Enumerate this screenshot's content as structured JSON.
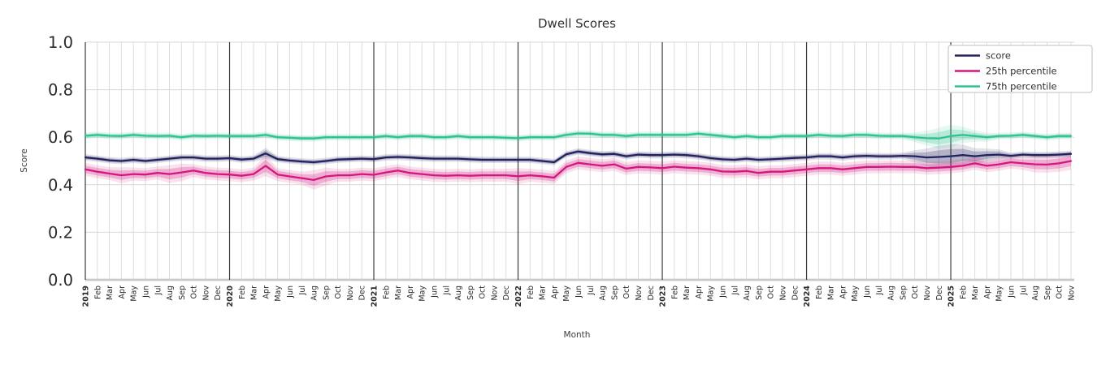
{
  "chart_data": {
    "type": "line",
    "title": "Dwell Scores",
    "xlabel": "Month",
    "ylabel": "Score",
    "ylim": [
      0.0,
      1.0
    ],
    "yticks": [
      "0.0",
      "0.2",
      "0.4",
      "0.6",
      "0.8",
      "1.0"
    ],
    "grid": true,
    "legend_position": "upper right",
    "categories": [
      "2019",
      "Feb",
      "Mar",
      "Apr",
      "May",
      "Jun",
      "Jul",
      "Aug",
      "Sep",
      "Oct",
      "Nov",
      "Dec",
      "2020",
      "Feb",
      "Mar",
      "Apr",
      "May",
      "Jun",
      "Jul",
      "Aug",
      "Sep",
      "Oct",
      "Nov",
      "Dec",
      "2021",
      "Feb",
      "Mar",
      "Apr",
      "May",
      "Jun",
      "Jul",
      "Aug",
      "Sep",
      "Oct",
      "Nov",
      "Dec",
      "2022",
      "Feb",
      "Mar",
      "Apr",
      "May",
      "Jun",
      "Jul",
      "Aug",
      "Sep",
      "Oct",
      "Nov",
      "Dec",
      "2023",
      "Feb",
      "Mar",
      "Apr",
      "May",
      "Jun",
      "Jul",
      "Aug",
      "Sep",
      "Oct",
      "Nov",
      "Dec",
      "2024",
      "Feb",
      "Mar",
      "Apr",
      "May",
      "Jun",
      "Jul",
      "Aug",
      "Sep",
      "Oct",
      "Nov",
      "Dec",
      "2025",
      "Feb",
      "Mar",
      "Apr",
      "May",
      "Jun",
      "Jul",
      "Aug",
      "Sep",
      "Oct",
      "Nov"
    ],
    "series": [
      {
        "name": "score",
        "color": "#23225f",
        "band": 0.008,
        "band_overrides": {
          "15": 0.014,
          "69": 0.015,
          "70": 0.022,
          "71": 0.028,
          "72": 0.03,
          "73": 0.026,
          "74": 0.02,
          "75": 0.016,
          "76": 0.013
        },
        "values": [
          0.515,
          0.51,
          0.503,
          0.5,
          0.505,
          0.5,
          0.505,
          0.51,
          0.515,
          0.515,
          0.51,
          0.51,
          0.512,
          0.506,
          0.51,
          0.532,
          0.508,
          0.502,
          0.498,
          0.495,
          0.5,
          0.506,
          0.508,
          0.51,
          0.508,
          0.515,
          0.517,
          0.515,
          0.512,
          0.51,
          0.51,
          0.51,
          0.507,
          0.505,
          0.505,
          0.505,
          0.505,
          0.505,
          0.5,
          0.495,
          0.528,
          0.54,
          0.533,
          0.528,
          0.53,
          0.52,
          0.527,
          0.525,
          0.525,
          0.527,
          0.525,
          0.52,
          0.512,
          0.507,
          0.505,
          0.51,
          0.505,
          0.507,
          0.51,
          0.513,
          0.515,
          0.52,
          0.52,
          0.515,
          0.52,
          0.522,
          0.52,
          0.52,
          0.522,
          0.52,
          0.515,
          0.517,
          0.52,
          0.525,
          0.52,
          0.525,
          0.527,
          0.522,
          0.527,
          0.525,
          0.525,
          0.527,
          0.53
        ]
      },
      {
        "name": "25th percentile",
        "color": "#d4177f",
        "band": 0.016,
        "band_overrides": {
          "3": 0.02,
          "7": 0.022,
          "8": 0.022,
          "15": 0.026,
          "19": 0.024,
          "20": 0.022,
          "36": 0.02,
          "79": 0.02,
          "80": 0.02,
          "81": 0.021,
          "82": 0.022
        },
        "values": [
          0.465,
          0.455,
          0.447,
          0.44,
          0.445,
          0.443,
          0.45,
          0.445,
          0.452,
          0.46,
          0.45,
          0.445,
          0.443,
          0.438,
          0.445,
          0.48,
          0.443,
          0.435,
          0.428,
          0.42,
          0.435,
          0.44,
          0.44,
          0.445,
          0.442,
          0.452,
          0.46,
          0.45,
          0.445,
          0.44,
          0.438,
          0.44,
          0.438,
          0.44,
          0.44,
          0.44,
          0.436,
          0.44,
          0.436,
          0.43,
          0.475,
          0.492,
          0.486,
          0.48,
          0.486,
          0.468,
          0.475,
          0.473,
          0.47,
          0.476,
          0.472,
          0.47,
          0.465,
          0.456,
          0.455,
          0.458,
          0.45,
          0.455,
          0.455,
          0.46,
          0.465,
          0.47,
          0.47,
          0.465,
          0.47,
          0.475,
          0.475,
          0.476,
          0.475,
          0.475,
          0.47,
          0.472,
          0.475,
          0.48,
          0.49,
          0.48,
          0.486,
          0.495,
          0.49,
          0.486,
          0.485,
          0.49,
          0.5
        ]
      },
      {
        "name": "75th percentile",
        "color": "#2ec48e",
        "band": 0.008,
        "band_overrides": {
          "69": 0.012,
          "70": 0.018,
          "71": 0.026,
          "72": 0.028,
          "73": 0.02,
          "74": 0.014,
          "75": 0.011
        },
        "values": [
          0.606,
          0.61,
          0.606,
          0.605,
          0.61,
          0.606,
          0.605,
          0.606,
          0.6,
          0.606,
          0.605,
          0.606,
          0.605,
          0.605,
          0.605,
          0.61,
          0.6,
          0.598,
          0.595,
          0.595,
          0.6,
          0.6,
          0.6,
          0.6,
          0.6,
          0.605,
          0.6,
          0.605,
          0.605,
          0.6,
          0.6,
          0.605,
          0.6,
          0.6,
          0.6,
          0.598,
          0.596,
          0.6,
          0.6,
          0.6,
          0.61,
          0.616,
          0.615,
          0.61,
          0.61,
          0.605,
          0.61,
          0.61,
          0.61,
          0.61,
          0.61,
          0.615,
          0.61,
          0.605,
          0.6,
          0.605,
          0.6,
          0.6,
          0.605,
          0.605,
          0.605,
          0.61,
          0.606,
          0.605,
          0.61,
          0.61,
          0.606,
          0.605,
          0.605,
          0.6,
          0.596,
          0.595,
          0.605,
          0.61,
          0.605,
          0.6,
          0.605,
          0.606,
          0.61,
          0.605,
          0.6,
          0.605,
          0.605
        ]
      }
    ]
  }
}
